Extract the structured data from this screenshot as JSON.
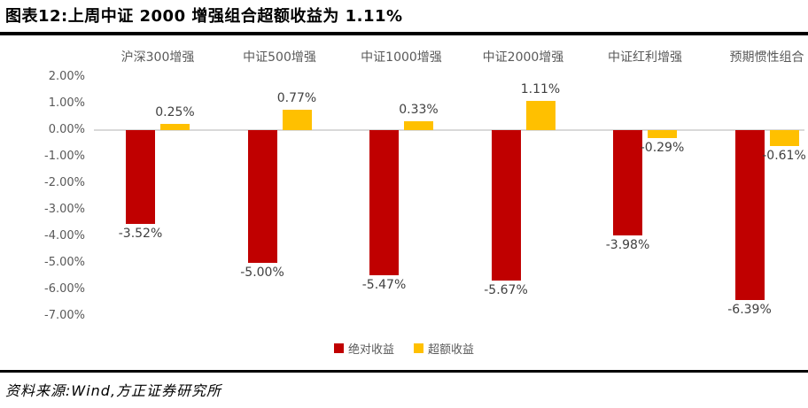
{
  "title": "图表12:上周中证 2000 增强组合超额收益为 1.11%",
  "source": "资料来源:Wind,方正证券研究所",
  "colors": {
    "absolute": "#C00000",
    "excess": "#FFC000",
    "axis_line": "#D9D9D9",
    "tick_text": "#595959",
    "label_text": "#404040"
  },
  "chart_data": {
    "type": "bar",
    "categories": [
      "沪深300增强",
      "中证500增强",
      "中证1000增强",
      "中证2000增强",
      "中证红利增强",
      "预期惯性组合"
    ],
    "series": [
      {
        "name": "绝对收益",
        "key": "absolute",
        "color": "#C00000",
        "values": [
          -3.52,
          -5.0,
          -5.47,
          -5.67,
          -3.98,
          -6.39
        ],
        "labels": [
          "-3.52%",
          "-5.00%",
          "-5.47%",
          "-5.67%",
          "-3.98%",
          "-6.39%"
        ]
      },
      {
        "name": "超额收益",
        "key": "excess",
        "color": "#FFC000",
        "values": [
          0.25,
          0.77,
          0.33,
          1.11,
          -0.29,
          -0.61
        ],
        "labels": [
          "0.25%",
          "0.77%",
          "0.33%",
          "1.11%",
          "-0.29%",
          "-0.61%"
        ]
      }
    ],
    "yticks": [
      2,
      1,
      0,
      -1,
      -2,
      -3,
      -4,
      -5,
      -6,
      -7
    ],
    "ytick_labels": [
      "2.00%",
      "1.00%",
      "0.00%",
      "-1.00%",
      "-2.00%",
      "-3.00%",
      "-4.00%",
      "-5.00%",
      "-6.00%",
      "-7.00%"
    ],
    "ylim": [
      -7.35,
      2.0
    ],
    "xlabel": "",
    "ylabel": "",
    "grid": false,
    "legend": [
      "绝对收益",
      "超额收益"
    ],
    "legend_position": "bottom",
    "category_label_position": "top"
  }
}
